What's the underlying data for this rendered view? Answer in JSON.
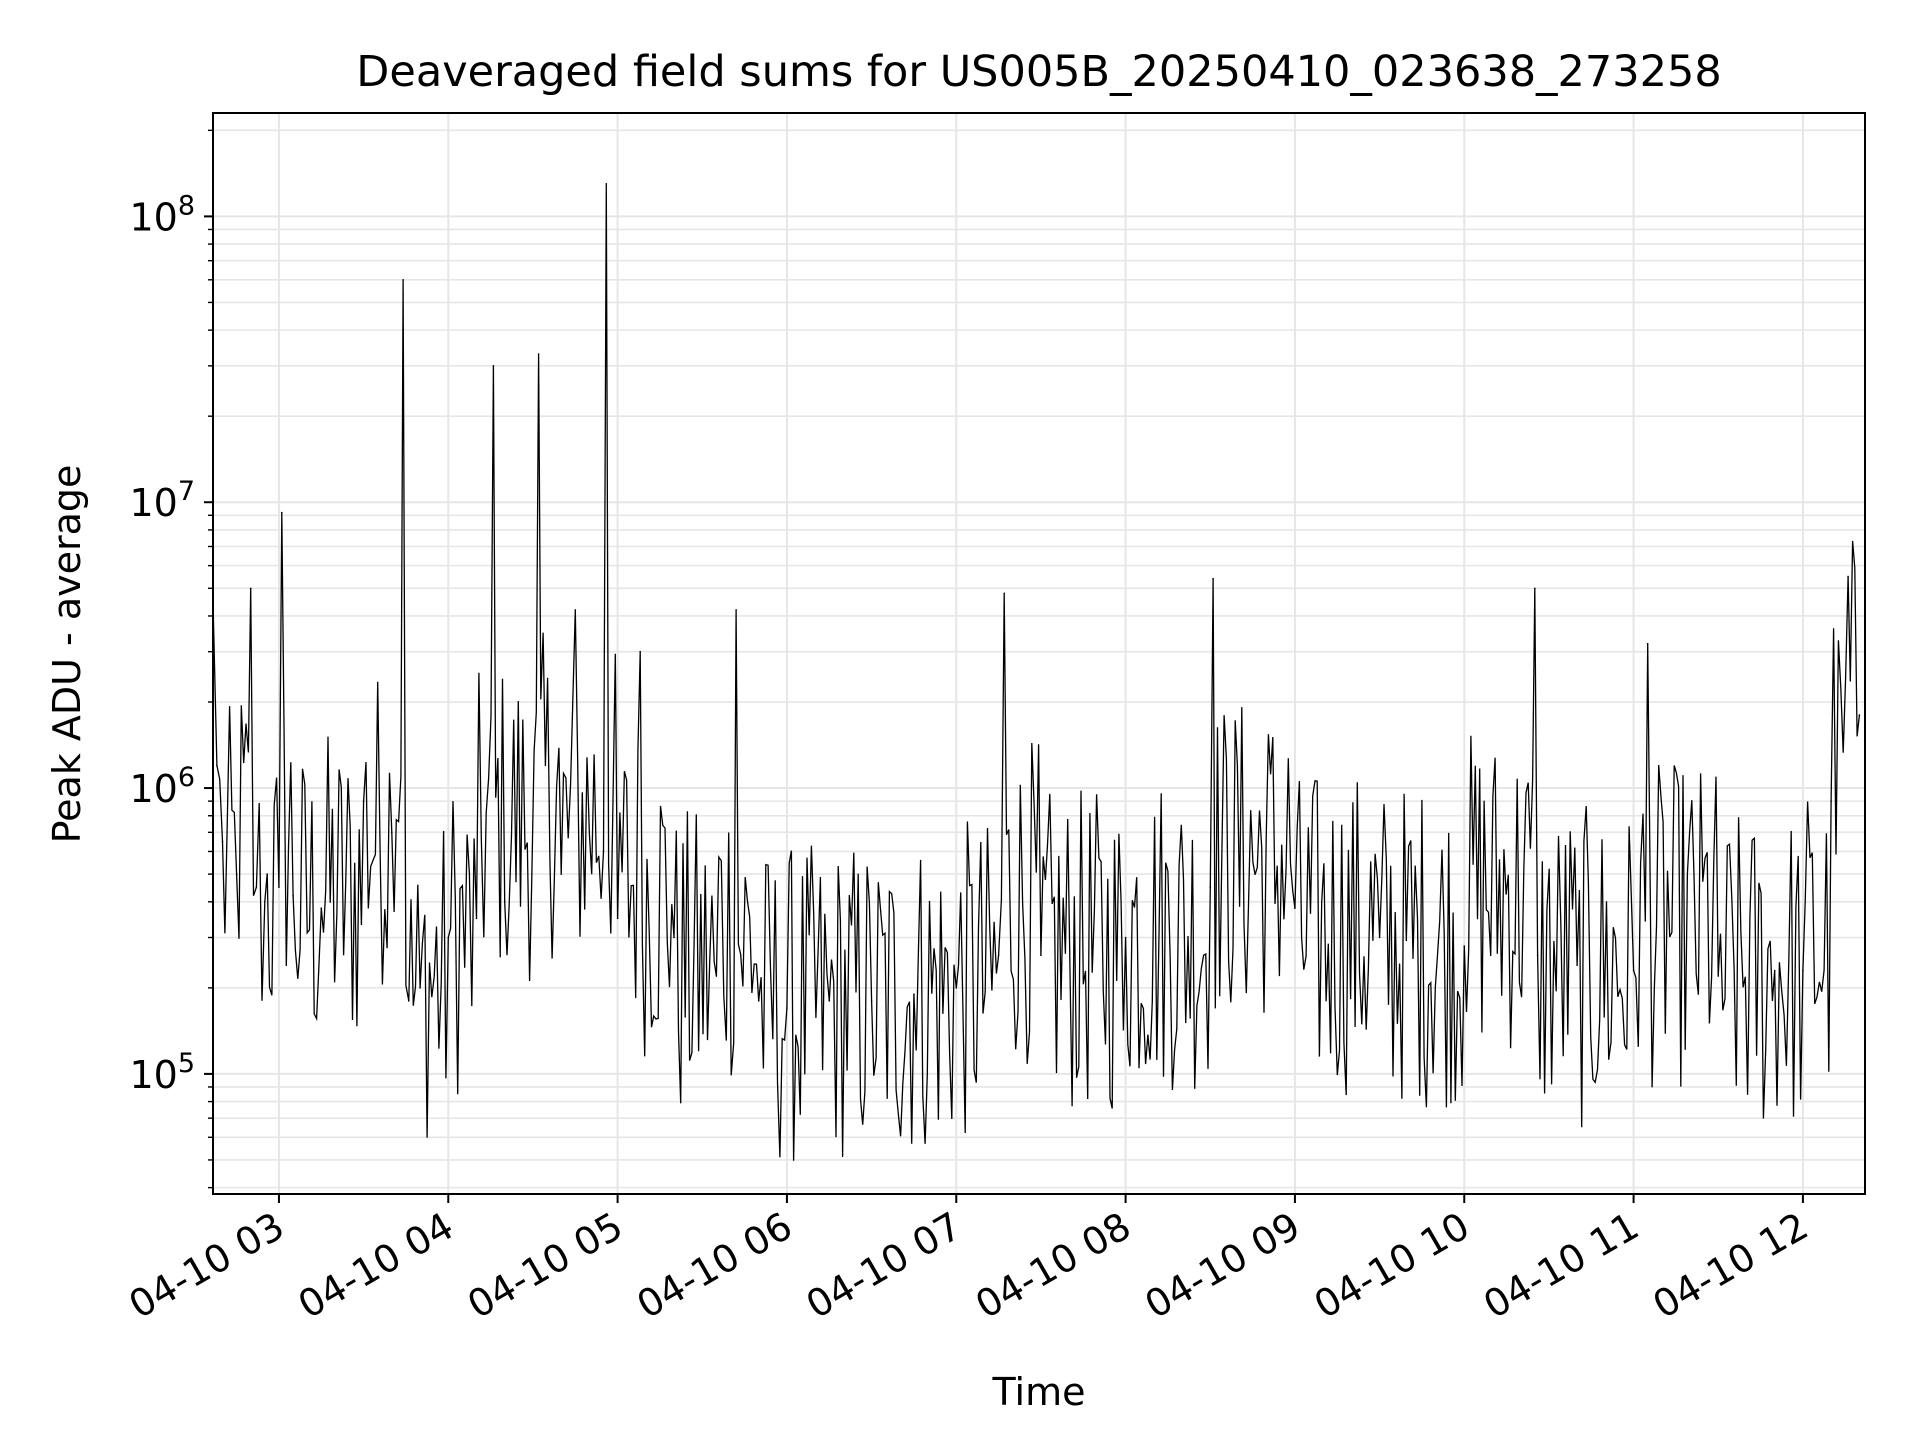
{
  "chart_data": {
    "type": "line",
    "title": "Deaveraged field sums for US005B_20250410_023638_273258",
    "xlabel": "Time",
    "ylabel": "Peak ADU - average",
    "yscale": "log",
    "ylim": [
      38000,
      230000000
    ],
    "xlim": [
      "2025-04-10 02:36:38",
      "2025-04-10 12:22:00"
    ],
    "grid": true,
    "grid_color": "#e6e6e6",
    "line_color": "#000000",
    "x_ticks": [
      {
        "value": "2025-04-10 03:00",
        "label": "04-10 03"
      },
      {
        "value": "2025-04-10 04:00",
        "label": "04-10 04"
      },
      {
        "value": "2025-04-10 05:00",
        "label": "04-10 05"
      },
      {
        "value": "2025-04-10 06:00",
        "label": "04-10 06"
      },
      {
        "value": "2025-04-10 07:00",
        "label": "04-10 07"
      },
      {
        "value": "2025-04-10 08:00",
        "label": "04-10 08"
      },
      {
        "value": "2025-04-10 09:00",
        "label": "04-10 09"
      },
      {
        "value": "2025-04-10 10:00",
        "label": "04-10 10"
      },
      {
        "value": "2025-04-10 11:00",
        "label": "04-10 11"
      },
      {
        "value": "2025-04-10 12:00",
        "label": "04-10 12"
      }
    ],
    "y_ticks": [
      {
        "value": 100000,
        "base": "10",
        "exp": "5"
      },
      {
        "value": 1000000,
        "base": "10",
        "exp": "6"
      },
      {
        "value": 10000000,
        "base": "10",
        "exp": "7"
      },
      {
        "value": 100000000,
        "base": "10",
        "exp": "8"
      }
    ],
    "series": [
      {
        "x": [
          "2025-04-10 02:36:38",
          "2025-04-10 02:38",
          "2025-04-10 02:40",
          "2025-04-10 02:45",
          "2025-04-10 02:50",
          "2025-04-10 02:52",
          "2025-04-10 02:55",
          "2025-04-10 03:00",
          "2025-04-10 03:01",
          "2025-04-10 03:05",
          "2025-04-10 03:15",
          "2025-04-10 03:30",
          "2025-04-10 03:40",
          "2025-04-10 03:44",
          "2025-04-10 03:46",
          "2025-04-10 03:50",
          "2025-04-10 04:00",
          "2025-04-10 04:10",
          "2025-04-10 04:16",
          "2025-04-10 04:20",
          "2025-04-10 04:32",
          "2025-04-10 04:40",
          "2025-04-10 04:45",
          "2025-04-10 04:55",
          "2025-04-10 04:56",
          "2025-04-10 05:00",
          "2025-04-10 05:08",
          "2025-04-10 05:20",
          "2025-04-10 05:35",
          "2025-04-10 05:42",
          "2025-04-10 05:50",
          "2025-04-10 06:00",
          "2025-04-10 06:15",
          "2025-04-10 06:30",
          "2025-04-10 06:45",
          "2025-04-10 07:00",
          "2025-04-10 07:15",
          "2025-04-10 07:17",
          "2025-04-10 07:30",
          "2025-04-10 08:00",
          "2025-04-10 08:30",
          "2025-04-10 08:31",
          "2025-04-10 09:00",
          "2025-04-10 09:30",
          "2025-04-10 10:00",
          "2025-04-10 10:25",
          "2025-04-10 10:26",
          "2025-04-10 10:40",
          "2025-04-10 11:00",
          "2025-04-10 11:05",
          "2025-04-10 11:30",
          "2025-04-10 11:50",
          "2025-04-10 12:00",
          "2025-04-10 12:10",
          "2025-04-10 12:16",
          "2025-04-10 12:20"
        ],
        "y": [
          4500000,
          1200000,
          650000,
          500000,
          5000000,
          450000,
          400000,
          450000,
          9200000,
          420000,
          380000,
          900000,
          700000,
          60000000,
          180000,
          200000,
          300000,
          350000,
          30000000,
          400000,
          33000000,
          500000,
          4200000,
          600000,
          130000000,
          350000,
          3000000,
          300000,
          220000,
          4200000,
          180000,
          170000,
          180000,
          180000,
          190000,
          200000,
          260000,
          4800000,
          260000,
          300000,
          450000,
          5400000,
          380000,
          300000,
          280000,
          5000000,
          260000,
          240000,
          230000,
          3200000,
          220000,
          230000,
          230000,
          900000,
          5500000,
          1800000
        ]
      }
    ]
  }
}
